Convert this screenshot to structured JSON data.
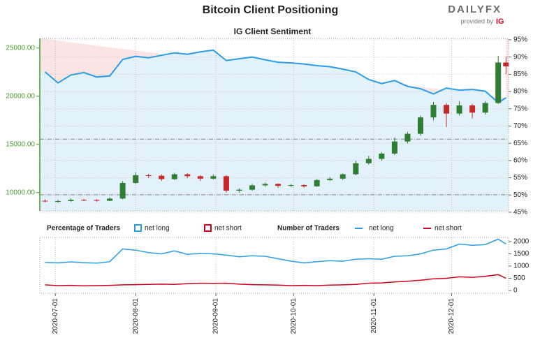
{
  "title": "Bitcoin Client Positioning",
  "brand": {
    "logo": "DAILYFX",
    "provided_by": "provided by",
    "ig": "IG"
  },
  "chart_data": [
    {
      "type": "candlestick",
      "title": "IG Client Sentiment",
      "x": [
        "2020-06-27",
        "2020-07-02",
        "2020-07-07",
        "2020-07-12",
        "2020-07-17",
        "2020-07-22",
        "2020-07-27",
        "2020-08-01",
        "2020-08-06",
        "2020-08-11",
        "2020-08-16",
        "2020-08-21",
        "2020-08-26",
        "2020-08-31",
        "2020-09-05",
        "2020-09-10",
        "2020-09-15",
        "2020-09-20",
        "2020-09-25",
        "2020-09-30",
        "2020-10-05",
        "2020-10-10",
        "2020-10-15",
        "2020-10-20",
        "2020-10-25",
        "2020-10-30",
        "2020-11-04",
        "2020-11-09",
        "2020-11-14",
        "2020-11-19",
        "2020-11-24",
        "2020-11-29",
        "2020-12-04",
        "2020-12-09",
        "2020-12-14",
        "2020-12-19",
        "2020-12-22"
      ],
      "open": [
        9150,
        9100,
        9120,
        9250,
        9230,
        9150,
        9380,
        11000,
        11800,
        11750,
        11400,
        11900,
        11700,
        11450,
        11700,
        10200,
        10300,
        10750,
        10900,
        10700,
        10780,
        10650,
        11300,
        11450,
        11900,
        13050,
        13500,
        14050,
        15300,
        16100,
        17800,
        19100,
        18200,
        19050,
        18300,
        19300,
        23500
      ],
      "high": [
        9300,
        9250,
        9400,
        9350,
        9300,
        9500,
        11200,
        12100,
        11950,
        11900,
        12050,
        12000,
        11800,
        11900,
        11800,
        10450,
        10900,
        11050,
        10950,
        10900,
        10850,
        11400,
        11600,
        12000,
        13300,
        13800,
        14200,
        15700,
        16300,
        18000,
        19400,
        19300,
        19500,
        19200,
        19500,
        24200,
        24100
      ],
      "low": [
        9000,
        8950,
        9050,
        9100,
        9050,
        9100,
        9300,
        10900,
        11500,
        11200,
        11300,
        11500,
        11200,
        11350,
        10000,
        10000,
        10200,
        10600,
        10500,
        10600,
        10500,
        10600,
        11200,
        11300,
        11800,
        12900,
        13300,
        13900,
        15100,
        15900,
        17500,
        16800,
        18000,
        17700,
        18100,
        19200,
        22300
      ],
      "close": [
        9100,
        9120,
        9250,
        9230,
        9150,
        9380,
        11000,
        11800,
        11750,
        11400,
        11900,
        11700,
        11450,
        11700,
        10200,
        10300,
        10750,
        10900,
        10700,
        10780,
        10650,
        11300,
        11450,
        11900,
        13050,
        13500,
        14050,
        15300,
        16100,
        17800,
        19100,
        18200,
        19050,
        18300,
        19300,
        23500,
        23100
      ],
      "up_color": "#2e7d32",
      "down_color": "#c62828",
      "xlim": [
        "2020-06-25",
        "2020-12-23"
      ],
      "xticks": [
        "2020-07-01",
        "2020-08-01",
        "2020-09-01",
        "2020-10-01",
        "2020-11-01",
        "2020-12-01"
      ],
      "ylim": [
        8100,
        26000
      ],
      "yticks": [
        {
          "value": 10000,
          "label": "10000.00"
        },
        {
          "value": 15000,
          "label": "15000.00"
        },
        {
          "value": 20000,
          "label": "20000.00"
        },
        {
          "value": 25000,
          "label": "25000.00"
        }
      ],
      "y2lim": [
        45.4,
        95.4
      ],
      "y2ticks": [
        {
          "value": 45,
          "label": "45%"
        },
        {
          "value": 50,
          "label": "50%"
        },
        {
          "value": 55,
          "label": "55%"
        },
        {
          "value": 60,
          "label": "60%"
        },
        {
          "value": 65,
          "label": "65%"
        },
        {
          "value": 70,
          "label": "70%"
        },
        {
          "value": 75,
          "label": "75%"
        },
        {
          "value": 80,
          "label": "80%"
        },
        {
          "value": 85,
          "label": "85%"
        },
        {
          "value": 90,
          "label": "90%"
        },
        {
          "value": 95,
          "label": "95%"
        }
      ],
      "reference_lines": [
        9780,
        15550
      ],
      "axis_color": "#4a9c2e",
      "grid": true,
      "legend_title": "Percentage of Traders",
      "series": [
        {
          "name": "net long",
          "color": "#2b9ce6",
          "fill": "#e3f1fb",
          "axis": "y2",
          "values": [
            85.7,
            82.5,
            84.8,
            85.5,
            84.2,
            84.5,
            89.3,
            90.2,
            89.8,
            90.5,
            91.2,
            90.8,
            91.5,
            92.0,
            89.0,
            89.5,
            90.0,
            89.2,
            88.5,
            88.3,
            88.0,
            87.5,
            87.2,
            86.5,
            85.7,
            83.5,
            82.3,
            83.2,
            81.5,
            80.8,
            79.3,
            81.0,
            80.4,
            80.6,
            80.1,
            76.8,
            78.2
          ]
        }
      ],
      "complement": {
        "name": "net short",
        "color": "#d0021b",
        "fill": "#fbe4e4"
      }
    },
    {
      "type": "line",
      "legend_title": "Number of Traders",
      "ylim": [
        -115,
        2170
      ],
      "yticks": [
        0,
        500,
        1000,
        1500,
        2000
      ],
      "grid": true,
      "series": [
        {
          "name": "net long",
          "color": "#2b9ce6",
          "values": [
            1150,
            1130,
            1170,
            1140,
            1120,
            1180,
            1700,
            1650,
            1550,
            1500,
            1620,
            1480,
            1520,
            1500,
            1450,
            1380,
            1420,
            1400,
            1300,
            1200,
            1130,
            1180,
            1220,
            1200,
            1280,
            1300,
            1280,
            1400,
            1420,
            1500,
            1650,
            1700,
            1900,
            1850,
            1880,
            2100,
            1900
          ]
        },
        {
          "name": "net short",
          "color": "#d0021b",
          "values": [
            230,
            200,
            210,
            190,
            200,
            210,
            230,
            240,
            250,
            260,
            250,
            280,
            300,
            290,
            300,
            260,
            240,
            230,
            220,
            200,
            210,
            200,
            220,
            230,
            250,
            300,
            310,
            350,
            380,
            420,
            480,
            500,
            560,
            540,
            580,
            650,
            500
          ]
        }
      ]
    }
  ]
}
